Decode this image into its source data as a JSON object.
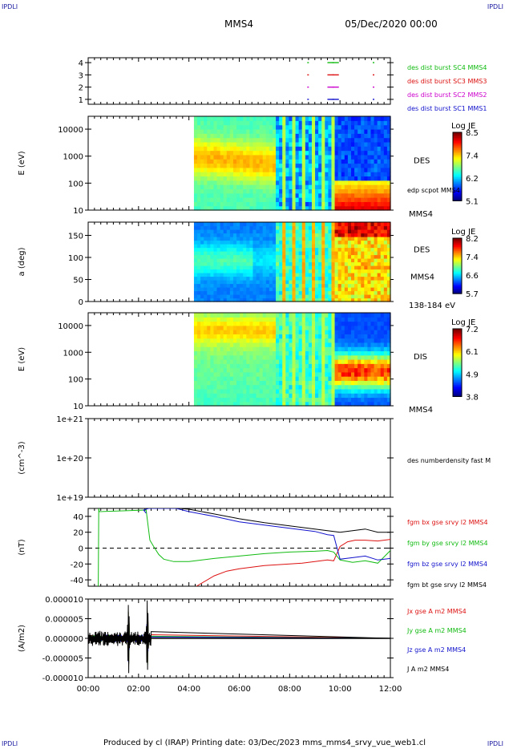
{
  "corners": {
    "tl": "IPDLI",
    "tr": "IPDLI",
    "bl": "IPDLI",
    "br": "IPDLI"
  },
  "header": {
    "title": "MMS4",
    "datetime": "05/Dec/2020 00:00"
  },
  "footer": {
    "text": "Produced by cl (IRAP)   Printing date: 03/Dec/2023   mms_mms4_srvy_vue_web1.cl"
  },
  "colors": {
    "blue": "#1111cc",
    "magenta": "#cc00cc",
    "red": "#dd1111",
    "green": "#11bb11",
    "black": "#000000"
  },
  "chart_data": [
    {
      "id": "burst",
      "type": "scatter",
      "xlim": [
        0,
        12
      ],
      "ylim": [
        0.6,
        4.4
      ],
      "yticks": [
        "1",
        "2",
        "3",
        "4"
      ],
      "ytick_values": [
        1,
        2,
        3,
        4
      ],
      "series": [
        {
          "name": "des dist burst SC1 MMS1",
          "color": "#1111cc",
          "y": 1,
          "x": [
            8.7,
            9.5,
            9.7,
            11.3
          ]
        },
        {
          "name": "des dist burst SC2 MMS2",
          "color": "#cc00cc",
          "y": 2,
          "x": [
            8.7,
            9.5,
            9.7,
            11.3
          ]
        },
        {
          "name": "des dist burst SC3 MMS3",
          "color": "#dd1111",
          "y": 3,
          "x": [
            8.7,
            9.5,
            9.7,
            11.3
          ]
        },
        {
          "name": "des dist burst SC4 MMS4",
          "color": "#11bb11",
          "y": 4,
          "x": [
            8.7,
            9.5,
            9.7,
            11.3
          ]
        }
      ]
    },
    {
      "id": "des_energy",
      "type": "heatmap",
      "ylabel": "E (eV)",
      "yscale": "log",
      "ylim": [
        10,
        30000
      ],
      "yticks": [
        "10",
        "100",
        "1000",
        "10000"
      ],
      "ytick_values": [
        10,
        100,
        1000,
        10000
      ],
      "data_start": 4.2,
      "right_label": "DES",
      "overlay_label": "edp scpot MMS4",
      "bottom_label": "MMS4",
      "colorbar": {
        "title": "Log JE",
        "ticks": [
          "8.5",
          "7.4",
          "6.2",
          "5.1"
        ],
        "min": 5.1,
        "max": 8.5
      }
    },
    {
      "id": "des_pitch",
      "type": "heatmap",
      "ylabel": "a (deg)",
      "ylim": [
        0,
        180
      ],
      "yticks": [
        "0",
        "50",
        "100",
        "150"
      ],
      "ytick_values": [
        0,
        50,
        100,
        150
      ],
      "data_start": 4.2,
      "right_label": "DES",
      "mid_label": "MMS4",
      "bottom_label": "138-184 eV",
      "colorbar": {
        "title": "Log JE",
        "ticks": [
          "8.2",
          "7.4",
          "6.6",
          "5.7"
        ],
        "min": 5.7,
        "max": 8.2
      }
    },
    {
      "id": "dis_energy",
      "type": "heatmap",
      "ylabel": "E (eV)",
      "yscale": "log",
      "ylim": [
        10,
        30000
      ],
      "yticks": [
        "10",
        "100",
        "1000",
        "10000"
      ],
      "ytick_values": [
        10,
        100,
        1000,
        10000
      ],
      "data_start": 4.2,
      "right_label": "DIS",
      "bottom_label": "MMS4",
      "colorbar": {
        "title": "Log JE",
        "ticks": [
          "7.2",
          "6.1",
          "4.9",
          "3.8"
        ],
        "min": 3.8,
        "max": 7.2
      }
    },
    {
      "id": "density",
      "type": "line",
      "ylabel": "(cm^-3)",
      "yscale": "log",
      "ylim": [
        1e+19,
        1e+21
      ],
      "yticks": [
        "1e+19",
        "1e+20",
        "1e+21"
      ],
      "ytick_values": [
        1e+19,
        1e+20,
        1e+21
      ],
      "series": [
        {
          "name": "des numberdensity fast M",
          "color": "#000000",
          "points": []
        }
      ]
    },
    {
      "id": "fgm",
      "type": "line",
      "ylabel": "(nT)",
      "ylim": [
        -48,
        50
      ],
      "yticks": [
        "-40",
        "-20",
        "0",
        "20",
        "40"
      ],
      "ytick_values": [
        -40,
        -20,
        0,
        20,
        40
      ],
      "zero_line": true,
      "series": [
        {
          "name": "fgm bx gse srvy l2 MMS4",
          "color": "#dd1111",
          "x": [
            4.3,
            5.0,
            5.5,
            6.0,
            6.5,
            7.0,
            7.5,
            8.0,
            8.5,
            9.0,
            9.5,
            9.75,
            10.0,
            10.3,
            10.6,
            11.0,
            11.5,
            12.0
          ],
          "y": [
            -48,
            -35,
            -29,
            -26,
            -24,
            -22,
            -21,
            -20,
            -19,
            -17,
            -15,
            -16,
            2,
            8,
            10,
            10,
            9,
            11
          ]
        },
        {
          "name": "fgm by gse srvy l2 MMS4",
          "color": "#11bb11",
          "x": [
            0.4,
            0.42,
            0.44,
            2.3,
            2.45,
            2.6,
            2.8,
            3.0,
            3.4,
            4.0,
            5.0,
            6.0,
            7.0,
            8.0,
            9.0,
            9.5,
            9.75,
            10.0,
            10.5,
            11.0,
            11.5,
            12.0
          ],
          "y": [
            -48,
            50,
            46,
            48,
            10,
            2,
            -8,
            -14,
            -17,
            -17,
            -13,
            -10,
            -7,
            -5,
            -4,
            -3,
            -5,
            -15,
            -18,
            -16,
            -19,
            -3
          ]
        },
        {
          "name": "fgm bz gse srvy l2 MMS4",
          "color": "#1111cc",
          "x": [
            2.3,
            2.2,
            2.4,
            3.5,
            4.0,
            5.0,
            6.0,
            7.0,
            8.0,
            9.0,
            9.5,
            9.75,
            10.0,
            10.5,
            11.0,
            11.5,
            12.0
          ],
          "y": [
            44,
            48,
            50,
            50,
            46,
            40,
            33,
            29,
            25,
            21,
            17,
            16,
            -14,
            -12,
            -10,
            -15,
            -13
          ]
        },
        {
          "name": "fgm bt gse srvy l2 MMS4",
          "color": "#000000",
          "x": [
            3.6,
            4.0,
            5.0,
            6.0,
            7.0,
            8.0,
            9.0,
            9.5,
            9.75,
            10.0,
            10.5,
            11.0,
            11.5,
            12.0
          ],
          "y": [
            50,
            49,
            43,
            37,
            32,
            28,
            24,
            22,
            21,
            20,
            22,
            24,
            20,
            20
          ]
        }
      ]
    },
    {
      "id": "current",
      "type": "line",
      "ylabel": "(A/m2)",
      "ylim": [
        -1e-05,
        1e-05
      ],
      "yticks": [
        "-0.000010",
        "-0.000005",
        "0.000000",
        "0.000005",
        "0.000010"
      ],
      "ytick_values": [
        -1e-05,
        -5e-06,
        0,
        5e-06,
        1e-05
      ],
      "spikes": {
        "t": [
          1.6,
          2.35
        ],
        "x_range": [
          0,
          2.5
        ]
      },
      "series": [
        {
          "name": "Jx gse A m2 MMS4",
          "color": "#dd1111"
        },
        {
          "name": "Jy gse A m2 MMS4",
          "color": "#11bb11"
        },
        {
          "name": "Jz gse A m2 MMS4",
          "color": "#1111cc"
        },
        {
          "name": "J A m2 MMS4",
          "color": "#000000"
        }
      ]
    }
  ],
  "xaxis": {
    "ticks": [
      "00:00",
      "02:00",
      "04:00",
      "06:00",
      "08:00",
      "10:00",
      "12:00"
    ],
    "tick_hours": [
      0,
      2,
      4,
      6,
      8,
      10,
      12
    ],
    "xlim": [
      0,
      12
    ]
  }
}
